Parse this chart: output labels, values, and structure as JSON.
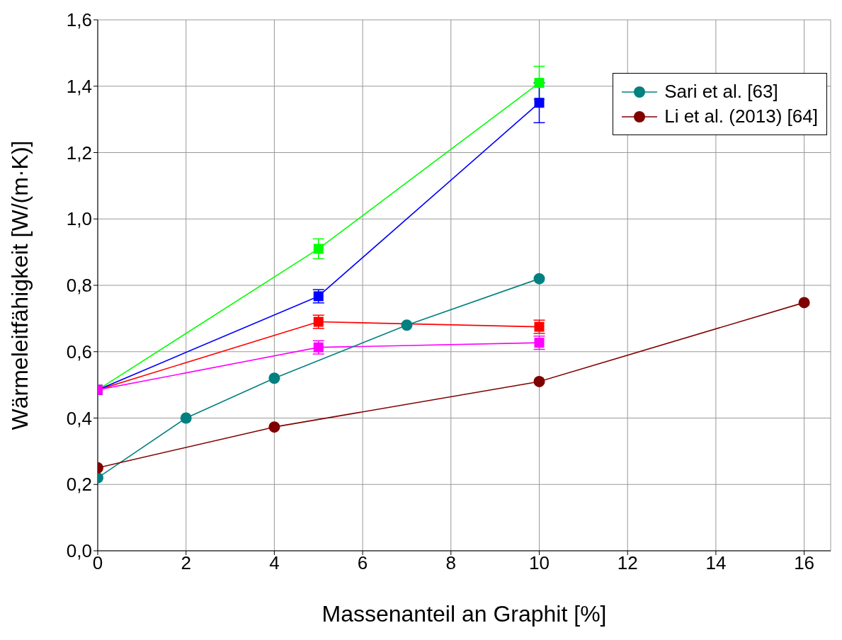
{
  "chart_data": {
    "type": "line",
    "xlabel": "Massenanteil an Graphit [%]",
    "ylabel": "Wärmeleitfähigkeit [W/(m·K)]",
    "xlim": [
      0,
      16.6
    ],
    "xticks": [
      0,
      2,
      4,
      6,
      8,
      10,
      12,
      14,
      16
    ],
    "ylim": [
      0,
      1.6
    ],
    "yticks": [
      {
        "value": 0,
        "label": "0,0"
      },
      {
        "value": 0.2,
        "label": "0,2"
      },
      {
        "value": 0.4,
        "label": "0,4"
      },
      {
        "value": 0.6,
        "label": "0,6"
      },
      {
        "value": 0.8,
        "label": "0,8"
      },
      {
        "value": 1,
        "label": "1,0"
      },
      {
        "value": 1.2,
        "label": "1,2"
      },
      {
        "value": 1.4,
        "label": "1,4"
      },
      {
        "value": 1.6,
        "label": "1,6"
      }
    ],
    "grid": true,
    "legend": "top right",
    "series": [
      {
        "color": "#ff0000",
        "marker": "square",
        "x": [
          0,
          5,
          10
        ],
        "values": [
          0.485,
          0.69,
          0.675
        ],
        "errors": [
          null,
          0.02,
          0.02
        ]
      },
      {
        "color": "#00ff00",
        "marker": "square",
        "x": [
          0,
          5,
          10
        ],
        "values": [
          0.485,
          0.91,
          1.41
        ],
        "errors": [
          null,
          0.03,
          0.05
        ]
      },
      {
        "color": "#0000ff",
        "marker": "square",
        "x": [
          0,
          5,
          10
        ],
        "values": [
          0.485,
          0.767,
          1.35
        ],
        "errors": [
          null,
          0.02,
          0.06
        ]
      },
      {
        "color": "#ff00ff",
        "marker": "square",
        "x": [
          0,
          5,
          10
        ],
        "values": [
          0.485,
          0.613,
          0.627
        ],
        "errors": [
          null,
          0.02,
          0.02
        ]
      },
      {
        "name": "Sari et al. [63]",
        "color": "#008080",
        "marker": "circle",
        "x": [
          0,
          2,
          4,
          7,
          10
        ],
        "values": [
          0.22,
          0.4,
          0.52,
          0.68,
          0.82
        ]
      },
      {
        "name": "Li et al. (2013) [64]",
        "color": "#800000",
        "marker": "circle",
        "x": [
          0,
          4,
          10,
          16
        ],
        "values": [
          0.25,
          0.373,
          0.51,
          0.748
        ]
      }
    ]
  }
}
